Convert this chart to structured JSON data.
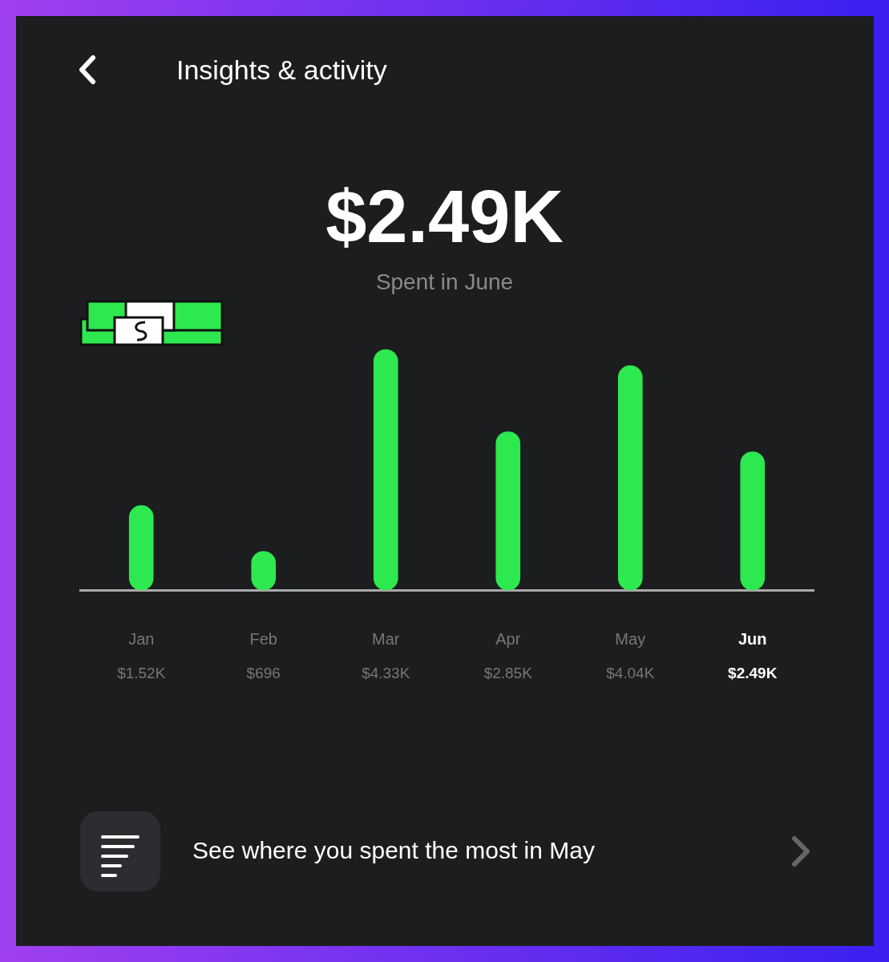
{
  "chart_data": {
    "type": "bar",
    "title": "Insights & activity",
    "categories": [
      "Jan",
      "Feb",
      "Mar",
      "Apr",
      "May",
      "Jun"
    ],
    "values": [
      1520,
      696,
      4330,
      2850,
      4040,
      2490
    ],
    "value_labels": [
      "$1.52K",
      "$696",
      "$4.33K",
      "$2.85K",
      "$4.04K",
      "$2.49K"
    ],
    "color": "#2ee84f",
    "annotations": [
      "$2.49K",
      "Spent in June",
      "See where you spent the most in May"
    ]
  }
}
